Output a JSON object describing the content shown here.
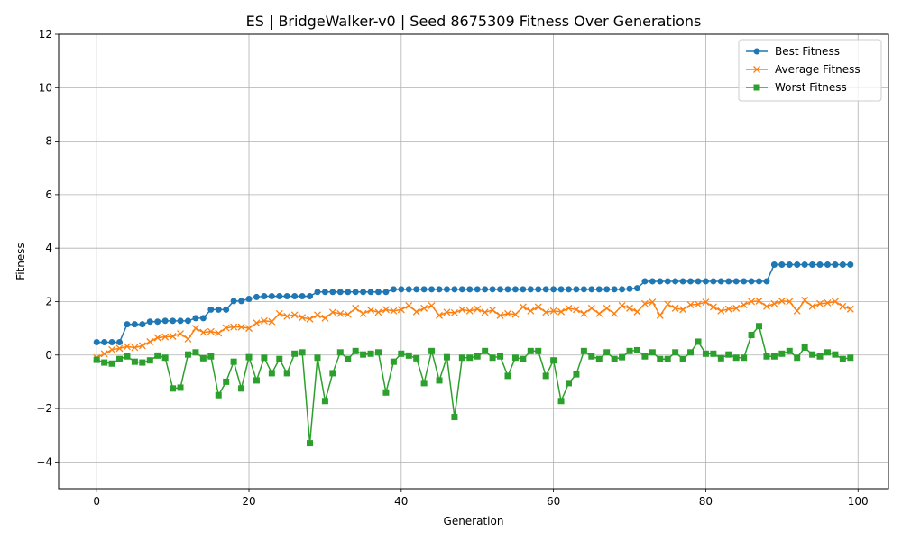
{
  "chart_data": {
    "type": "line",
    "title": "ES | BridgeWalker-v0 | Seed 8675309 Fitness Over Generations",
    "xlabel": "Generation",
    "ylabel": "Fitness",
    "xlim": [
      -5,
      104
    ],
    "ylim": [
      -5,
      12
    ],
    "xticks": [
      0,
      20,
      40,
      60,
      80,
      100
    ],
    "yticks": [
      -4,
      -2,
      0,
      2,
      4,
      6,
      8,
      10,
      12
    ],
    "grid": true,
    "legend_position": "top-right",
    "series": [
      {
        "name": "Best Fitness",
        "color": "#1f77b4",
        "marker": "circle",
        "values": [
          0.48,
          0.48,
          0.48,
          0.48,
          1.15,
          1.15,
          1.15,
          1.25,
          1.25,
          1.28,
          1.28,
          1.28,
          1.28,
          1.38,
          1.38,
          1.7,
          1.7,
          1.7,
          2.02,
          2.02,
          2.1,
          2.17,
          2.2,
          2.2,
          2.2,
          2.2,
          2.2,
          2.2,
          2.2,
          2.36,
          2.36,
          2.36,
          2.36,
          2.36,
          2.36,
          2.36,
          2.36,
          2.36,
          2.36,
          2.46,
          2.46,
          2.46,
          2.46,
          2.46,
          2.46,
          2.46,
          2.46,
          2.46,
          2.46,
          2.46,
          2.46,
          2.46,
          2.46,
          2.46,
          2.46,
          2.46,
          2.46,
          2.46,
          2.46,
          2.46,
          2.46,
          2.46,
          2.46,
          2.46,
          2.46,
          2.46,
          2.46,
          2.46,
          2.46,
          2.46,
          2.48,
          2.5,
          2.76,
          2.76,
          2.76,
          2.76,
          2.76,
          2.76,
          2.76,
          2.76,
          2.76,
          2.76,
          2.76,
          2.76,
          2.76,
          2.76,
          2.76,
          2.76,
          2.76,
          3.38,
          3.38,
          3.38,
          3.38,
          3.38,
          3.38,
          3.38,
          3.38,
          3.38,
          3.38,
          3.38
        ]
      },
      {
        "name": "Average Fitness",
        "color": "#ff7f0e",
        "marker": "x",
        "values": [
          -0.1,
          0.05,
          0.2,
          0.25,
          0.32,
          0.28,
          0.35,
          0.5,
          0.65,
          0.68,
          0.7,
          0.8,
          0.6,
          1.0,
          0.85,
          0.88,
          0.82,
          1.02,
          1.05,
          1.05,
          1.0,
          1.2,
          1.28,
          1.25,
          1.55,
          1.45,
          1.5,
          1.4,
          1.35,
          1.5,
          1.38,
          1.6,
          1.55,
          1.52,
          1.75,
          1.55,
          1.68,
          1.6,
          1.7,
          1.65,
          1.7,
          1.85,
          1.62,
          1.75,
          1.85,
          1.48,
          1.6,
          1.58,
          1.7,
          1.65,
          1.72,
          1.6,
          1.68,
          1.48,
          1.55,
          1.52,
          1.8,
          1.65,
          1.8,
          1.6,
          1.65,
          1.62,
          1.75,
          1.7,
          1.55,
          1.75,
          1.55,
          1.75,
          1.55,
          1.85,
          1.75,
          1.62,
          1.92,
          1.98,
          1.48,
          1.9,
          1.75,
          1.7,
          1.88,
          1.9,
          1.98,
          1.8,
          1.65,
          1.72,
          1.75,
          1.88,
          2.0,
          2.02,
          1.82,
          1.92,
          2.02,
          2.0,
          1.65,
          2.05,
          1.82,
          1.92,
          1.95,
          2.0,
          1.82,
          1.72
        ]
      },
      {
        "name": "Worst Fitness",
        "color": "#2ca02c",
        "marker": "square",
        "values": [
          -0.18,
          -0.28,
          -0.32,
          -0.15,
          -0.05,
          -0.25,
          -0.28,
          -0.2,
          -0.02,
          -0.1,
          -1.25,
          -1.22,
          0.02,
          0.1,
          -0.12,
          -0.05,
          -1.5,
          -1.0,
          -0.25,
          -1.25,
          -0.08,
          -0.95,
          -0.1,
          -0.68,
          -0.15,
          -0.68,
          0.05,
          0.1,
          -3.3,
          -0.1,
          -1.72,
          -0.68,
          0.1,
          -0.15,
          0.15,
          0.02,
          0.05,
          0.1,
          -1.4,
          -0.25,
          0.05,
          -0.02,
          -0.12,
          -1.05,
          0.15,
          -0.95,
          -0.08,
          -2.32,
          -0.1,
          -0.1,
          -0.05,
          0.15,
          -0.1,
          -0.05,
          -0.78,
          -0.1,
          -0.15,
          0.15,
          0.15,
          -0.78,
          -0.2,
          -1.72,
          -1.05,
          -0.72,
          0.15,
          -0.05,
          -0.15,
          0.1,
          -0.15,
          -0.08,
          0.15,
          0.18,
          -0.05,
          0.1,
          -0.15,
          -0.15,
          0.1,
          -0.15,
          0.1,
          0.5,
          0.05,
          0.05,
          -0.12,
          0.02,
          -0.1,
          -0.1,
          0.75,
          1.08,
          -0.05,
          -0.05,
          0.05,
          0.15,
          -0.1,
          0.28,
          0.02,
          -0.05,
          0.1,
          0.02,
          -0.15,
          -0.1
        ]
      }
    ]
  }
}
